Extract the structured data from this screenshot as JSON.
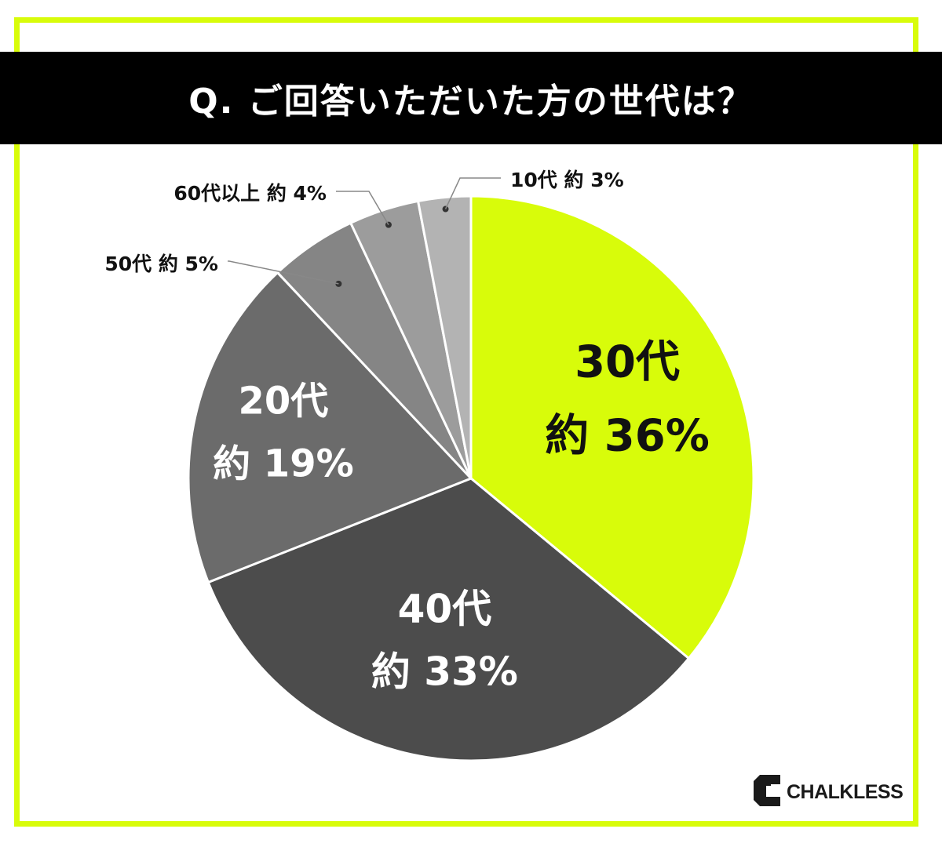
{
  "title": "Q. ご回答いただいた方の世代は？",
  "brand": {
    "name": "CHALKLESS",
    "accent": "#d8fc0a"
  },
  "chart_data": {
    "type": "pie",
    "title": "Q. ご回答いただいた方の世代は？",
    "start_angle": "12 o'clock, clockwise",
    "slices": [
      {
        "label": "30代",
        "value_label": "約 36%",
        "value": 36,
        "color": "#d8fc0a",
        "label_placement": "inside",
        "text_color": "#111111"
      },
      {
        "label": "40代",
        "value_label": "約 33%",
        "value": 33,
        "color": "#4c4c4c",
        "label_placement": "inside",
        "text_color": "#ffffff"
      },
      {
        "label": "20代",
        "value_label": "約 19%",
        "value": 19,
        "color": "#6b6b6b",
        "label_placement": "inside",
        "text_color": "#ffffff"
      },
      {
        "label": "50代",
        "value_label": "約 5%",
        "value": 5,
        "color": "#858585",
        "label_placement": "outside",
        "text_color": "#111111"
      },
      {
        "label": "60代以上",
        "value_label": "約 4%",
        "value": 4,
        "color": "#9c9c9c",
        "label_placement": "outside",
        "text_color": "#111111"
      },
      {
        "label": "10代",
        "value_label": "約 3%",
        "value": 3,
        "color": "#b3b3b3",
        "label_placement": "outside",
        "text_color": "#111111"
      }
    ]
  }
}
